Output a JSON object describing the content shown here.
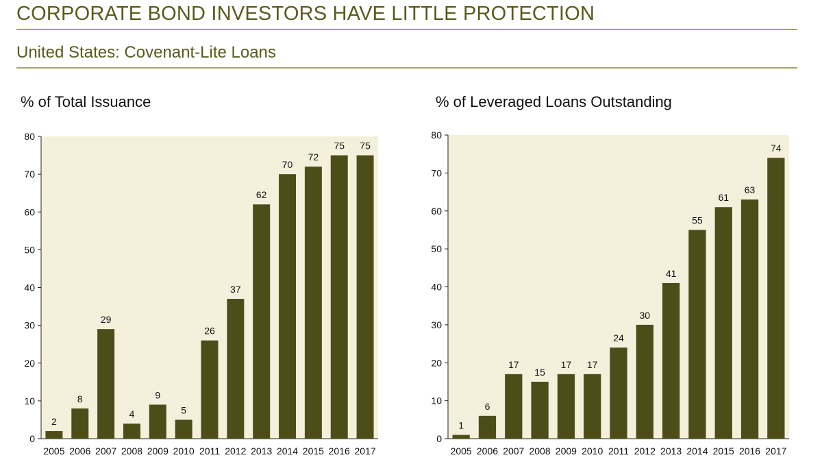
{
  "header": {
    "title": "CORPORATE BOND INVESTORS HAVE LITTLE PROTECTION",
    "subtitle": "United States: Covenant-Lite Loans"
  },
  "colors": {
    "bar": "#4d4d1a",
    "plot_background": "#f5f0dc",
    "title": "#5a5a1e",
    "rule": "#a8a26a"
  },
  "chart_data": [
    {
      "type": "bar",
      "title": "% of Total Issuance",
      "categories": [
        "2005",
        "2006",
        "2007",
        "2008",
        "2009",
        "2010",
        "2011",
        "2012",
        "2013",
        "2014",
        "2015",
        "2016",
        "2017"
      ],
      "values": [
        2,
        8,
        29,
        4,
        9,
        5,
        26,
        37,
        62,
        70,
        72,
        75,
        75
      ],
      "yticks": [
        0,
        10,
        20,
        30,
        40,
        50,
        60,
        70,
        80
      ],
      "ylim": [
        0,
        80
      ],
      "xlabel": "",
      "ylabel": "",
      "grid": false,
      "data_labels": true
    },
    {
      "type": "bar",
      "title": "% of Leveraged Loans Outstanding",
      "categories": [
        "2005",
        "2006",
        "2007",
        "2008",
        "2009",
        "2010",
        "2011",
        "2012",
        "2013",
        "2014",
        "2015",
        "2016",
        "2017"
      ],
      "values": [
        1,
        6,
        17,
        15,
        17,
        17,
        24,
        30,
        41,
        55,
        61,
        63,
        74
      ],
      "yticks": [
        0,
        10,
        20,
        30,
        40,
        50,
        60,
        70,
        80
      ],
      "ylim": [
        0,
        80
      ],
      "xlabel": "",
      "ylabel": "",
      "grid": false,
      "data_labels": true
    }
  ]
}
